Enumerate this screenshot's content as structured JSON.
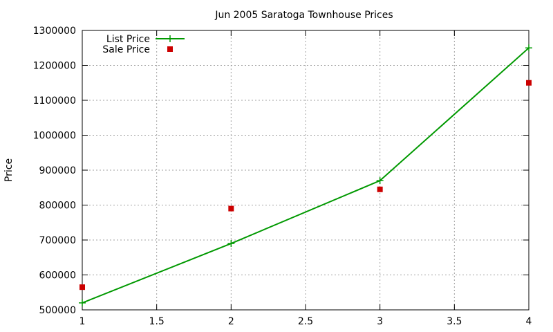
{
  "chart_data": {
    "type": "line",
    "title": "Jun 2005 Saratoga Townhouse Prices",
    "xlabel": "",
    "ylabel": "Price",
    "xlim": [
      1,
      4
    ],
    "ylim": [
      500000,
      1300000
    ],
    "x_ticks": [
      "1",
      "1.5",
      "2",
      "2.5",
      "3",
      "3.5",
      "4"
    ],
    "y_ticks": [
      "500000",
      "600000",
      "700000",
      "800000",
      "900000",
      "1000000",
      "1100000",
      "1200000",
      "1300000"
    ],
    "grid": true,
    "legend_position": "top-left",
    "series": [
      {
        "name": "List Price",
        "style": "linespoints",
        "marker": "plus",
        "color": "#009900",
        "x": [
          1,
          2,
          3,
          4
        ],
        "y": [
          520000,
          690000,
          870000,
          1250000
        ]
      },
      {
        "name": "Sale Price",
        "style": "points",
        "marker": "square",
        "color": "#cc0000",
        "x": [
          1,
          2,
          3,
          4
        ],
        "y": [
          565000,
          790000,
          845000,
          1150000
        ]
      }
    ]
  }
}
